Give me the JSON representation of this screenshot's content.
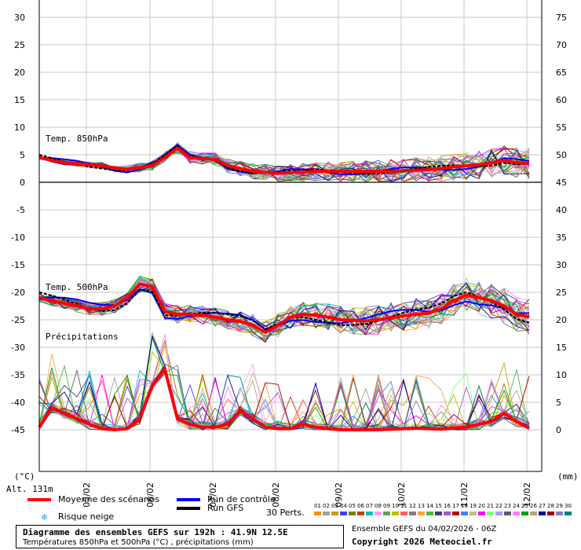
{
  "chart_data": {
    "type": "line",
    "title": "Diagramme des ensembles GEFS sur 192h : 41.9N 12.5E",
    "subtitle": "Températures 850hPa et 500hPa (°C) , précipitations (mm)",
    "left_axis_unit": "(°C)",
    "right_axis_unit": "(mm)",
    "altitude": "Alt. 131m",
    "left_ticks": [
      "30",
      "25",
      "20",
      "15",
      "10",
      "5",
      "0",
      "-5",
      "-10",
      "-15",
      "-20",
      "-25",
      "-30",
      "-35",
      "-40",
      "-45"
    ],
    "right_ticks": [
      "75",
      "70",
      "65",
      "60",
      "55",
      "50",
      "45",
      "40",
      "35",
      "30",
      "25",
      "20",
      "15",
      "10",
      "5",
      "0"
    ],
    "x_dates": [
      "05/02",
      "06/02",
      "07/02",
      "08/02",
      "09/02",
      "10/02",
      "11/02",
      "12/02"
    ],
    "panel_labels": {
      "t850": "Temp. 850hPa",
      "t500": "Temp. 500hPa",
      "precip": "Précipitations"
    },
    "ylim_temp": [
      -45,
      30
    ],
    "ylim_precip_mm": [
      0,
      75
    ],
    "t850_mean": [
      4.5,
      4,
      3.6,
      3.4,
      3.2,
      3,
      2.6,
      2.4,
      2.7,
      3,
      4.5,
      6.2,
      4.5,
      4.3,
      4.2,
      3,
      2.5,
      2,
      1.8,
      1.6,
      1.8,
      1.8,
      2,
      2,
      2,
      2,
      2,
      2,
      2,
      2.1,
      2.2,
      2.3,
      2.5,
      2.8,
      3,
      3.2,
      3.5,
      4,
      3.6,
      3.4
    ],
    "t500_mean": [
      -21,
      -21.5,
      -22,
      -22.5,
      -23,
      -23,
      -22.5,
      -21,
      -18.5,
      -19,
      -23.5,
      -24,
      -24,
      -24.2,
      -24.5,
      -25,
      -25.3,
      -26,
      -27.3,
      -26,
      -24.5,
      -24,
      -24.2,
      -24.5,
      -25,
      -25.1,
      -25.2,
      -25,
      -24.6,
      -24.3,
      -24,
      -23.8,
      -23,
      -21.5,
      -20.5,
      -21,
      -21.5,
      -22.5,
      -24,
      -24.5
    ],
    "precip_mean": [
      0.5,
      4,
      3,
      2,
      1,
      0.2,
      0,
      0.2,
      2,
      8,
      11,
      2,
      1,
      0.5,
      0.5,
      1,
      3.5,
      2,
      0.5,
      0.2,
      0.2,
      1,
      0.5,
      0.2,
      0,
      0,
      0,
      0,
      0.1,
      0.2,
      0.3,
      0.2,
      0.1,
      0.3,
      0.5,
      1,
      1.5,
      3,
      1.5,
      0.3
    ],
    "series": [
      {
        "name": "Moyenne des scénarios",
        "color": "#ff0000"
      },
      {
        "name": "Run de contrôle",
        "color": "#0000ff"
      },
      {
        "name": "Run GFS",
        "color": "#000000"
      }
    ],
    "snow_risk_label": "Risque neige",
    "perts_label": "30 Perts.",
    "perts_ids": [
      "01",
      "02",
      "03",
      "04",
      "05",
      "06",
      "07",
      "08",
      "09",
      "10",
      "11",
      "12",
      "13",
      "14",
      "15",
      "16",
      "17",
      "18",
      "19",
      "20",
      "21",
      "22",
      "23",
      "24",
      "25",
      "26",
      "27",
      "28",
      "29",
      "30"
    ],
    "perts_colors": [
      "#ff8c00",
      "#a0a0a0",
      "#c8a000",
      "#4040ff",
      "#808000",
      "#c04000",
      "#00c0c0",
      "#ffa0ff",
      "#60a060",
      "#c0c000",
      "#ff6060",
      "#808080",
      "#ffa040",
      "#40c040",
      "#404080",
      "#a060c0",
      "#c00000",
      "#4080ff",
      "#c0c080",
      "#ff00ff",
      "#80ff80",
      "#a0a0ff",
      "#606060",
      "#ff80ff",
      "#00a000",
      "#c0a080",
      "#0000a0",
      "#a00000",
      "#8080c0",
      "#008080"
    ]
  },
  "info": {
    "ensemble": "Ensemble GEFS du 04/02/2026 - 06Z",
    "copyright": "Copyright 2026 Meteociel.fr"
  }
}
